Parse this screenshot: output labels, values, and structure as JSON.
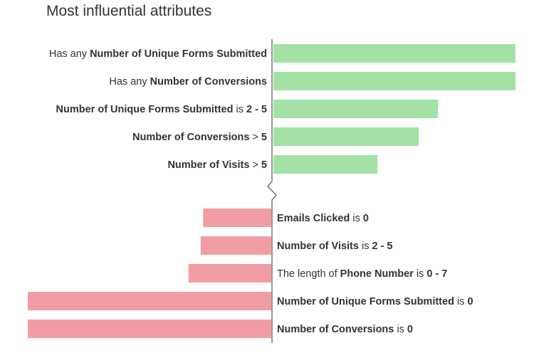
{
  "chart_data": {
    "type": "bar",
    "title": "Most influential attributes",
    "colors": {
      "positive": "#a4e1a4",
      "negative": "#f29ca3",
      "axis": "#555555"
    },
    "positive": [
      {
        "parts": [
          {
            "text": "Has any ",
            "bold": false
          },
          {
            "text": "Number of Unique Forms Submitted",
            "bold": true
          }
        ],
        "value": 100
      },
      {
        "parts": [
          {
            "text": "Has any ",
            "bold": false
          },
          {
            "text": "Number of Conversions",
            "bold": true
          }
        ],
        "value": 100
      },
      {
        "parts": [
          {
            "text": "Number of Unique Forms Submitted",
            "bold": true
          },
          {
            "text": " is ",
            "bold": false
          },
          {
            "text": "2 - 5",
            "bold": true
          }
        ],
        "value": 68
      },
      {
        "parts": [
          {
            "text": "Number of Conversions",
            "bold": true
          },
          {
            "text": " > ",
            "bold": false
          },
          {
            "text": "5",
            "bold": true
          }
        ],
        "value": 60
      },
      {
        "parts": [
          {
            "text": "Number of Visits",
            "bold": true
          },
          {
            "text": " > ",
            "bold": false
          },
          {
            "text": "5",
            "bold": true
          }
        ],
        "value": 43
      }
    ],
    "negative": [
      {
        "parts": [
          {
            "text": "Emails Clicked",
            "bold": true
          },
          {
            "text": " is ",
            "bold": false
          },
          {
            "text": "0",
            "bold": true
          }
        ],
        "value": 28
      },
      {
        "parts": [
          {
            "text": "Number of Visits",
            "bold": true
          },
          {
            "text": " is ",
            "bold": false
          },
          {
            "text": "2 - 5",
            "bold": true
          }
        ],
        "value": 29
      },
      {
        "parts": [
          {
            "text": "The length of ",
            "bold": false
          },
          {
            "text": "Phone Number",
            "bold": true
          },
          {
            "text": " is ",
            "bold": false
          },
          {
            "text": "0 - 7",
            "bold": true
          }
        ],
        "value": 34
      },
      {
        "parts": [
          {
            "text": "Number of Unique Forms Submitted",
            "bold": true
          },
          {
            "text": " is ",
            "bold": false
          },
          {
            "text": "0",
            "bold": true
          }
        ],
        "value": 100
      },
      {
        "parts": [
          {
            "text": "Number of Conversions",
            "bold": true
          },
          {
            "text": " is ",
            "bold": false
          },
          {
            "text": "0",
            "bold": true
          }
        ],
        "value": 100
      }
    ]
  }
}
